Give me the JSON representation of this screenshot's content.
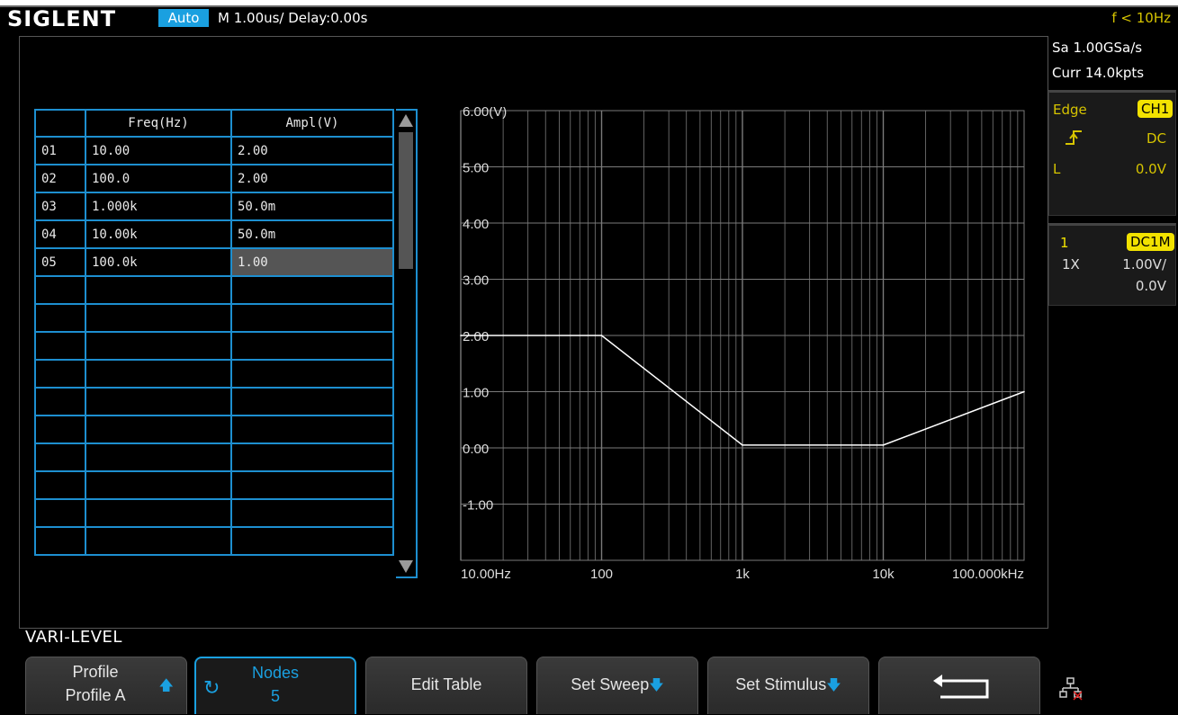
{
  "topbar": {
    "brand": "SIGLENT",
    "mode": "Auto",
    "timebase": "M 1.00us/  Delay:0.00s",
    "freq_readout": "f < 10Hz"
  },
  "table": {
    "headers": [
      "",
      "Freq(Hz)",
      "Ampl(V)"
    ],
    "rows": [
      {
        "idx": "01",
        "freq": "10.00",
        "ampl": "2.00"
      },
      {
        "idx": "02",
        "freq": "100.0",
        "ampl": "2.00"
      },
      {
        "idx": "03",
        "freq": "1.000k",
        "ampl": "50.0m"
      },
      {
        "idx": "04",
        "freq": "10.00k",
        "ampl": "50.0m"
      },
      {
        "idx": "05",
        "freq": "100.0k",
        "ampl": "1.00"
      }
    ],
    "selected_row": 4,
    "empty_rows": 10
  },
  "chart_data": {
    "type": "line",
    "xscale": "log",
    "x": [
      10,
      100,
      1000,
      10000,
      100000
    ],
    "series": [
      {
        "values": [
          2.0,
          2.0,
          0.05,
          0.05,
          1.0
        ]
      }
    ],
    "xlim": [
      10,
      100000
    ],
    "ylim": [
      -2.0,
      6.0
    ],
    "y_ticks": [
      "6.00(V)",
      "5.00",
      "4.00",
      "3.00",
      "2.00",
      "1.00",
      "0.00",
      "-1.00"
    ],
    "x_ticks": [
      "10.00Hz",
      "100",
      "1k",
      "10k",
      "100.000kHz"
    ],
    "grid": true,
    "line_color": "#ffffff",
    "grid_color": "#7a7a7a"
  },
  "right_panel": {
    "sample_rate": "Sa 1.00GSa/s",
    "curr_points": "Curr 14.0kpts",
    "trigger_type": "Edge",
    "trigger_source": "CH1",
    "trigger_coupling": "DC",
    "trigger_level_label": "L",
    "trigger_level": "0.0V",
    "channel_num": "1",
    "channel_coupling": "DC1M",
    "probe": "1X",
    "volts_div": "1.00V/",
    "offset": "0.0V"
  },
  "menu": {
    "title": "VARI-LEVEL",
    "keys": [
      {
        "line1": "Profile",
        "line2": "Profile A"
      },
      {
        "line1": "Nodes",
        "line2": "5"
      },
      {
        "label": "Edit Table"
      },
      {
        "label": "Set Sweep"
      },
      {
        "label": "Set Stimulus"
      },
      {
        "icon": "return-arrow-icon"
      }
    ]
  },
  "colors": {
    "accent": "#1aa0e0",
    "trigger_yellow": "#f2e200",
    "table_border": "#1d8fd0"
  }
}
